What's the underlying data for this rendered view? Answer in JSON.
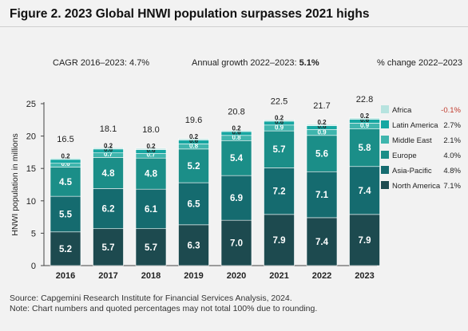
{
  "title": "Figure 2. 2023 Global HNWI population surpasses 2021 highs",
  "cagr": {
    "label": "CAGR 2016–2023:",
    "value": "4.7%"
  },
  "annual_growth": {
    "label": "Annual growth 2022–2023:",
    "value": "5.1%"
  },
  "pct_change_header": "% change 2022–2023",
  "source": "Source: Capgemini Research Institute for Financial Services Analysis, 2024.",
  "note": "Note: Chart numbers and quoted percentages may not total 100% due to rounding.",
  "chart_data": {
    "type": "bar",
    "stacked": true,
    "categories": [
      "2016",
      "2017",
      "2018",
      "2019",
      "2020",
      "2021",
      "2022",
      "2023"
    ],
    "ylabel": "HNWI population in millions",
    "ylim": [
      0,
      25
    ],
    "yticks": [
      0,
      5,
      10,
      15,
      20,
      25
    ],
    "totals": [
      "16.5",
      "18.1",
      "18.0",
      "19.6",
      "20.8",
      "22.5",
      "21.7",
      "22.8"
    ],
    "series": [
      {
        "name": "North America",
        "change": "7.1%",
        "color": "#1d4a4f",
        "label_color": "#ffffff",
        "values": [
          5.2,
          5.7,
          5.7,
          6.3,
          7.0,
          7.9,
          7.4,
          7.9
        ],
        "labels": [
          "5.2",
          "5.7",
          "5.7",
          "6.3",
          "7.0",
          "7.9",
          "7.4",
          "7.9"
        ]
      },
      {
        "name": "Asia-Pacific",
        "change": "4.8%",
        "color": "#156b6f",
        "label_color": "#ffffff",
        "values": [
          5.5,
          6.2,
          6.1,
          6.5,
          6.9,
          7.2,
          7.1,
          7.4
        ],
        "labels": [
          "5.5",
          "6.2",
          "6.1",
          "6.5",
          "6.9",
          "7.2",
          "7.1",
          "7.4"
        ]
      },
      {
        "name": "Europe",
        "change": "4.0%",
        "color": "#1b8e88",
        "label_color": "#ffffff",
        "values": [
          4.5,
          4.8,
          4.8,
          5.2,
          5.4,
          5.7,
          5.6,
          5.8
        ],
        "labels": [
          "4.5",
          "4.8",
          "4.8",
          "5.2",
          "5.4",
          "5.7",
          "5.6",
          "5.8"
        ]
      },
      {
        "name": "Middle East",
        "change": "2.1%",
        "color": "#3fb5ad",
        "label_color": "#ffffff",
        "values": [
          0.6,
          0.7,
          0.7,
          0.8,
          0.8,
          0.9,
          0.9,
          0.9
        ],
        "labels": [
          "0.6",
          "0.7",
          "0.7",
          "0.8",
          "0.8",
          "0.9",
          "0.9",
          "0.9"
        ]
      },
      {
        "name": "Latin America",
        "change": "2.7%",
        "color": "#17a7a2",
        "label_color": "#222222",
        "values": [
          0.6,
          0.6,
          0.6,
          0.6,
          0.6,
          0.6,
          0.6,
          0.6
        ],
        "labels": [
          "",
          "0.6",
          "0.6",
          "0.6",
          "0.6",
          "0.6",
          "0.6",
          "0.6"
        ]
      },
      {
        "name": "Africa",
        "change": "-0.1%",
        "change_color": "#c0392b",
        "color": "#b7e3df",
        "label_color": "#222222",
        "values": [
          0.2,
          0.2,
          0.2,
          0.2,
          0.2,
          0.2,
          0.2,
          0.2
        ],
        "labels": [
          "0.2",
          "0.2",
          "0.2",
          "0.2",
          "0.2",
          "0.2",
          "0.2",
          "0.2"
        ]
      }
    ],
    "legend_placement": "right",
    "grid": false
  }
}
